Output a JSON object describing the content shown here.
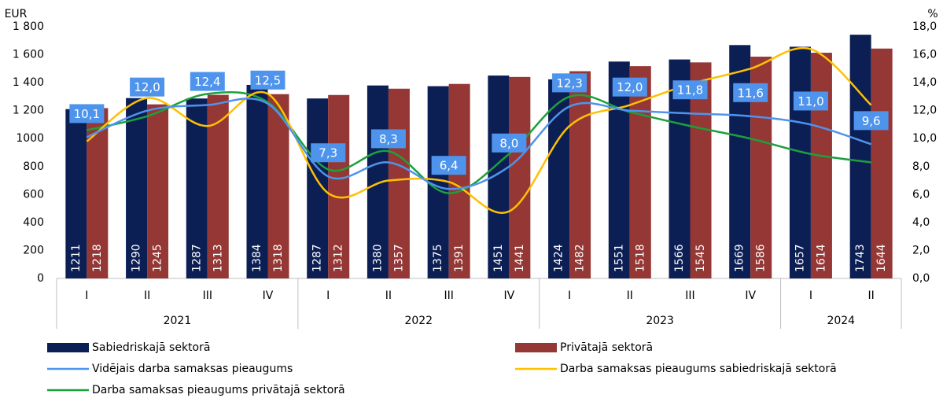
{
  "chart_data": {
    "type": "bar",
    "y_label": "EUR",
    "y2_label": "%",
    "groups": [
      {
        "label": "2021",
        "categories": [
          "I",
          "II",
          "III",
          "IV"
        ]
      },
      {
        "label": "2022",
        "categories": [
          "I",
          "II",
          "III",
          "IV"
        ]
      },
      {
        "label": "2023",
        "categories": [
          "I",
          "II",
          "III",
          "IV"
        ]
      },
      {
        "label": "2024",
        "categories": [
          "I",
          "II"
        ]
      }
    ],
    "ylim": [
      0,
      1800
    ],
    "yticks": [
      0,
      200,
      400,
      600,
      800,
      1000,
      {
        "value": 1200,
        "label": "1 200"
      },
      {
        "value": 1400,
        "label": "1 400"
      },
      {
        "value": 1600,
        "label": "1 600"
      },
      {
        "value": 1800,
        "label": "1 800"
      }
    ],
    "y2lim": [
      0,
      18
    ],
    "y2ticks": [
      {
        "value": 0,
        "label": "0,0"
      },
      {
        "value": 2,
        "label": "2,0"
      },
      {
        "value": 4,
        "label": "4,0"
      },
      {
        "value": 6,
        "label": "6,0"
      },
      {
        "value": 8,
        "label": "8,0"
      },
      {
        "value": 10,
        "label": "10,0"
      },
      {
        "value": 12,
        "label": "12,0"
      },
      {
        "value": 14,
        "label": "14,0"
      },
      {
        "value": 16,
        "label": "16,0"
      },
      {
        "value": 18,
        "label": "18,0"
      }
    ],
    "series": [
      {
        "name": "Sabiedriskajā sektorā",
        "type": "bar",
        "color": "#0c1f55",
        "values": [
          1211,
          1290,
          1287,
          1384,
          1287,
          1380,
          1375,
          1451,
          1424,
          1551,
          1566,
          1669,
          1657,
          1743
        ]
      },
      {
        "name": "Privātajā sektorā",
        "type": "bar",
        "color": "#953735",
        "values": [
          1218,
          1245,
          1313,
          1318,
          1312,
          1357,
          1391,
          1441,
          1482,
          1518,
          1545,
          1586,
          1614,
          1644
        ]
      },
      {
        "name": "Vidējais darba samaksas pieaugums",
        "type": "line",
        "axis": "y2",
        "color": "#4f94ec",
        "values": [
          10.1,
          12.0,
          12.4,
          12.5,
          7.3,
          8.3,
          6.4,
          8.0,
          12.3,
          12.0,
          11.8,
          11.6,
          11.0,
          9.6
        ],
        "value_labels": [
          "10,1",
          "12,0",
          "12,4",
          "12,5",
          "7,3",
          "8,3",
          "6,4",
          "8,0",
          "12,3",
          "12,0",
          "11,8",
          "11,6",
          "11,0",
          "9,6"
        ]
      },
      {
        "name": "Darba samaksas pieaugums sabiedriskajā sektorā",
        "type": "line",
        "axis": "y2",
        "color": "#ffc000",
        "values": [
          9.8,
          12.9,
          10.9,
          13.2,
          6.1,
          7.0,
          6.9,
          4.8,
          10.9,
          12.4,
          13.9,
          15.0,
          16.4,
          12.4
        ]
      },
      {
        "name": "Darba samaksas pieaugums privātajā sektorā",
        "type": "line",
        "axis": "y2",
        "color": "#1ca03c",
        "values": [
          10.6,
          11.6,
          13.2,
          12.6,
          7.8,
          9.1,
          6.1,
          8.9,
          13.0,
          11.9,
          10.9,
          10.0,
          8.9,
          8.3
        ]
      }
    ]
  }
}
